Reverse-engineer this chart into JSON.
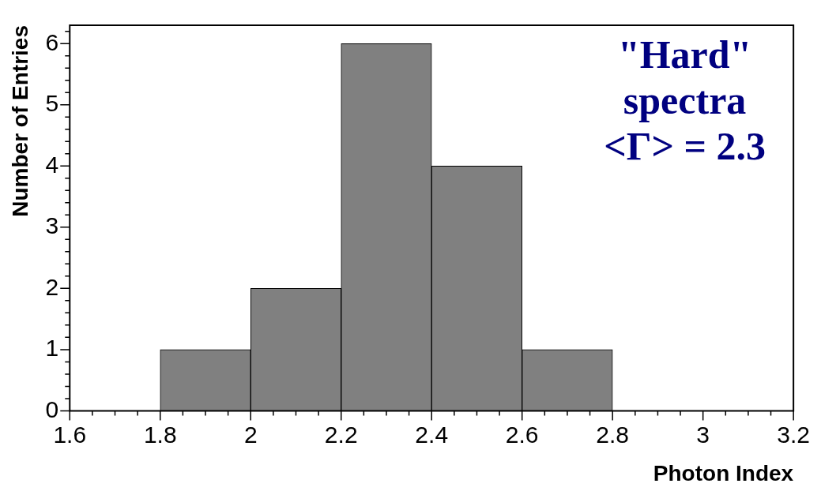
{
  "chart_data": {
    "type": "histogram",
    "xlabel": "Photon Index",
    "ylabel": "Number of Entries",
    "bins": [
      1.8,
      2.0,
      2.2,
      2.4,
      2.6,
      2.8
    ],
    "values": [
      1,
      2,
      6,
      4,
      1
    ],
    "color": "#808080",
    "xlim": [
      1.6,
      3.2
    ],
    "xticks": [
      1.6,
      {
        "value": 1.65,
        "label": null
      },
      {
        "value": 1.7,
        "label": null
      },
      {
        "value": 1.75,
        "label": null
      },
      1.8,
      {
        "value": 1.85,
        "label": null
      },
      {
        "value": 1.9,
        "label": null
      },
      {
        "value": 1.95,
        "label": null
      },
      2,
      {
        "value": 2.05,
        "label": null
      },
      {
        "value": 2.1,
        "label": null
      },
      {
        "value": 2.15,
        "label": null
      },
      2.2,
      {
        "value": 2.25,
        "label": null
      },
      {
        "value": 2.3,
        "label": null
      },
      {
        "value": 2.35,
        "label": null
      },
      2.4,
      {
        "value": 2.45,
        "label": null
      },
      {
        "value": 2.5,
        "label": null
      },
      {
        "value": 2.55,
        "label": null
      },
      2.6,
      {
        "value": 2.65,
        "label": null
      },
      {
        "value": 2.7,
        "label": null
      },
      {
        "value": 2.75,
        "label": null
      },
      2.8,
      {
        "value": 2.85,
        "label": null
      },
      {
        "value": 2.9,
        "label": null
      },
      {
        "value": 2.95,
        "label": null
      },
      3,
      {
        "value": 3.05,
        "label": null
      },
      {
        "value": 3.1,
        "label": null
      },
      {
        "value": 3.15,
        "label": null
      },
      3.2
    ],
    "ylim": [
      0,
      6.3
    ],
    "yticks": [
      0,
      {
        "value": 0.2,
        "label": null
      },
      {
        "value": 0.4,
        "label": null
      },
      {
        "value": 0.6,
        "label": null
      },
      {
        "value": 0.8,
        "label": null
      },
      1,
      {
        "value": 1.2,
        "label": null
      },
      {
        "value": 1.4,
        "label": null
      },
      {
        "value": 1.6,
        "label": null
      },
      {
        "value": 1.8,
        "label": null
      },
      2,
      {
        "value": 2.2,
        "label": null
      },
      {
        "value": 2.4,
        "label": null
      },
      {
        "value": 2.6,
        "label": null
      },
      {
        "value": 2.8,
        "label": null
      },
      3,
      {
        "value": 3.2,
        "label": null
      },
      {
        "value": 3.4,
        "label": null
      },
      {
        "value": 3.6,
        "label": null
      },
      {
        "value": 3.8,
        "label": null
      },
      4,
      {
        "value": 4.2,
        "label": null
      },
      {
        "value": 4.4,
        "label": null
      },
      {
        "value": 4.6,
        "label": null
      },
      {
        "value": 4.8,
        "label": null
      },
      5,
      {
        "value": 5.2,
        "label": null
      },
      {
        "value": 5.4,
        "label": null
      },
      {
        "value": 5.6,
        "label": null
      },
      {
        "value": 5.8,
        "label": null
      },
      6,
      {
        "value": 6.2,
        "label": null
      }
    ],
    "grid": false,
    "annotations": [
      "\"Hard\"",
      "spectra",
      "<Γ> = 2.3"
    ]
  }
}
